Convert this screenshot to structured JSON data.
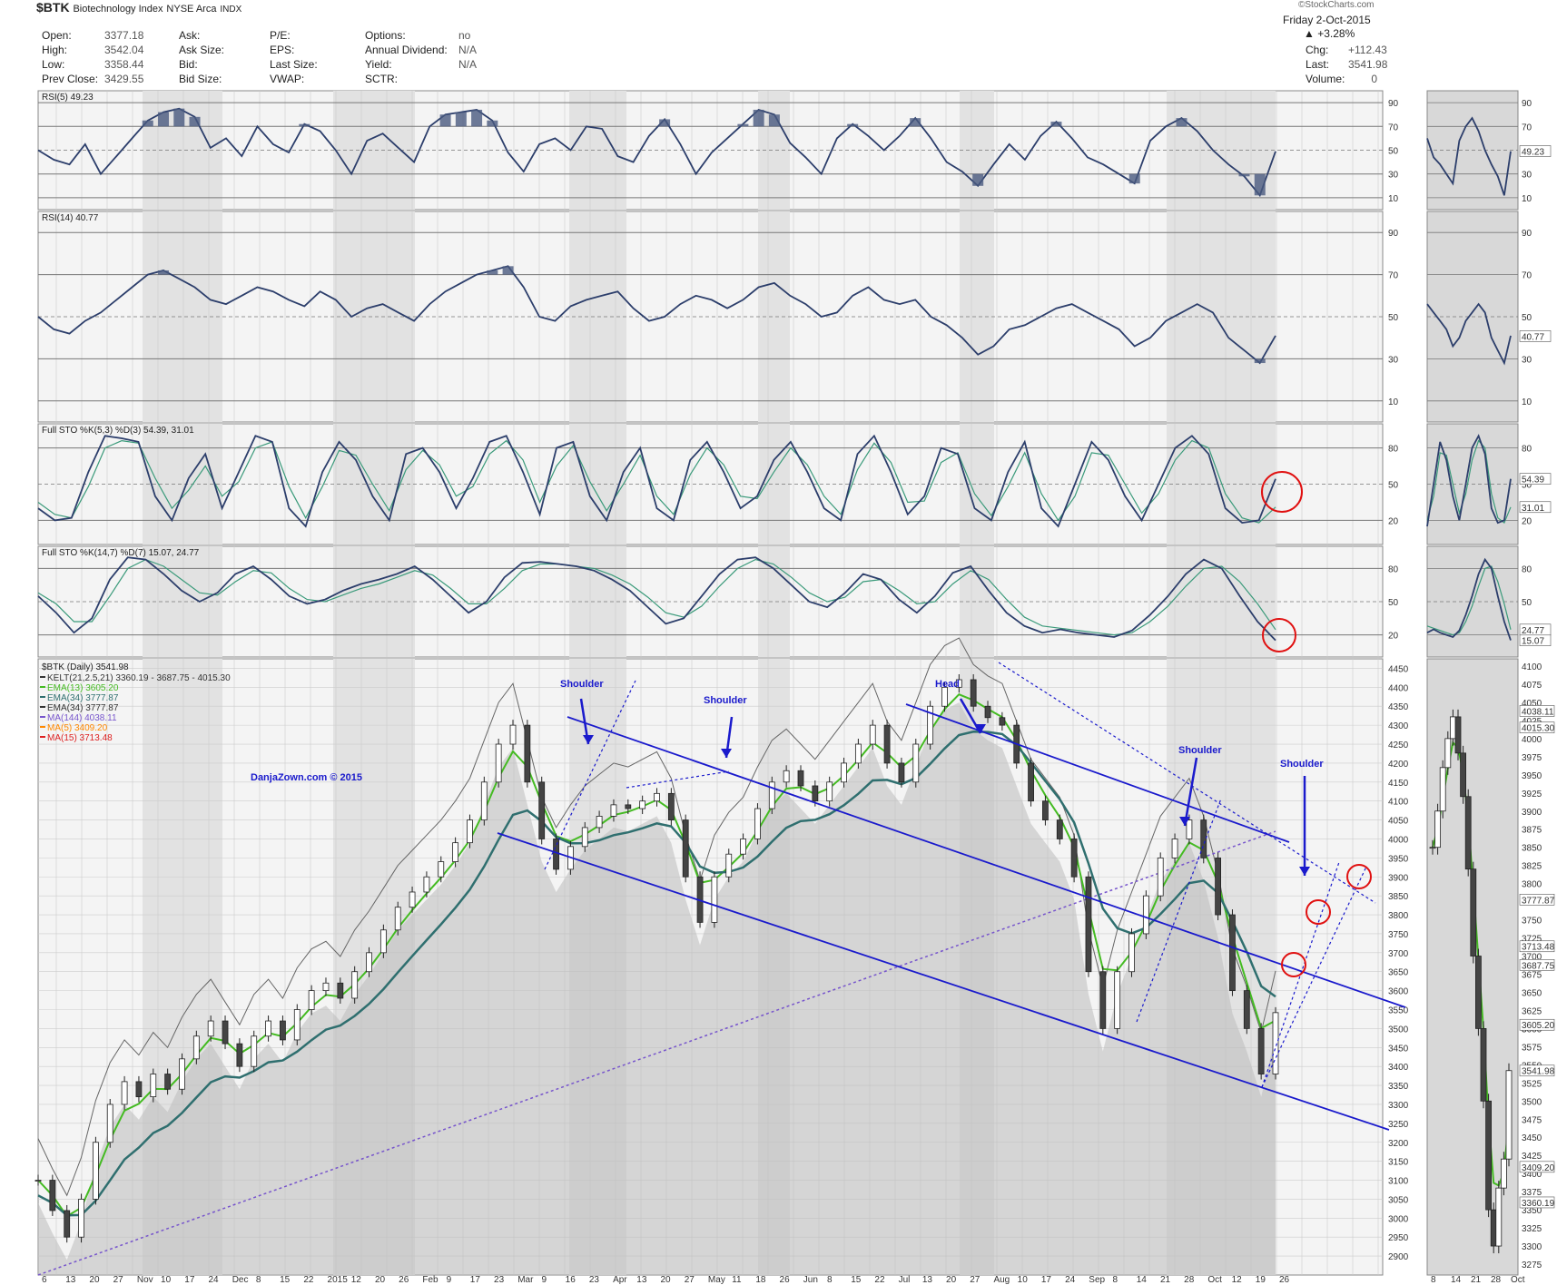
{
  "header": {
    "symbol": "$BTK",
    "name": "Biotechnology Index",
    "exchange": "NYSE Arca",
    "type": "INDX",
    "watermark": "©StockCharts.com",
    "date": "Friday 2-Oct-2015",
    "change_pct": "+3.28%",
    "fields": [
      {
        "k": "Open:",
        "v": "3377.18"
      },
      {
        "k": "High:",
        "v": "3542.04"
      },
      {
        "k": "Low:",
        "v": "3358.44"
      },
      {
        "k": "Prev Close:",
        "v": "3429.55"
      },
      {
        "k": "Ask:",
        "v": ""
      },
      {
        "k": "Ask Size:",
        "v": ""
      },
      {
        "k": "Bid:",
        "v": ""
      },
      {
        "k": "Bid Size:",
        "v": ""
      },
      {
        "k": "P/E:",
        "v": ""
      },
      {
        "k": "EPS:",
        "v": ""
      },
      {
        "k": "Last Size:",
        "v": ""
      },
      {
        "k": "VWAP:",
        "v": ""
      },
      {
        "k": "Options:",
        "v": "no"
      },
      {
        "k": "Annual Dividend:",
        "v": "N/A"
      },
      {
        "k": "Yield:",
        "v": "N/A"
      },
      {
        "k": "SCTR:",
        "v": ""
      }
    ],
    "right_fields": [
      {
        "k": "Chg:",
        "v": "+112.43"
      },
      {
        "k": "Last:",
        "v": "3541.98"
      },
      {
        "k": "Volume:",
        "v": "0"
      }
    ]
  },
  "colors": {
    "price_line": "#2c3e6b",
    "signal": "#3a9a7a",
    "trend": "#1a1acc",
    "circle": "#e01010",
    "ema13": "#44bb22",
    "ema34": "#2f6f6f",
    "ma144": "#7755cc",
    "ma5": "#ff8800",
    "ma15": "#dd2222"
  },
  "chart_data": [
    {
      "type": "line",
      "title": "RSI(5) 49.23",
      "levels": [
        90,
        70,
        50,
        30,
        10
      ],
      "last_value": "49.23",
      "series": [
        {
          "name": "RSI(5)",
          "values": [
            50,
            42,
            38,
            55,
            30,
            45,
            60,
            75,
            82,
            85,
            78,
            52,
            60,
            45,
            70,
            55,
            48,
            72,
            66,
            50,
            30,
            58,
            64,
            52,
            40,
            70,
            80,
            82,
            84,
            75,
            48,
            32,
            55,
            60,
            50,
            70,
            68,
            45,
            40,
            62,
            76,
            55,
            30,
            48,
            60,
            72,
            84,
            80,
            56,
            44,
            30,
            60,
            72,
            62,
            50,
            62,
            77,
            60,
            40,
            32,
            20,
            38,
            55,
            42,
            62,
            74,
            60,
            44,
            38,
            30,
            22,
            58,
            70,
            77,
            66,
            50,
            38,
            28,
            12,
            49
          ]
        }
      ]
    },
    {
      "type": "line",
      "title": "RSI(14) 40.77",
      "levels": [
        90,
        70,
        50,
        30,
        10
      ],
      "last_value": "40.77",
      "series": [
        {
          "name": "RSI(14)",
          "values": [
            50,
            44,
            42,
            48,
            52,
            58,
            64,
            70,
            72,
            68,
            64,
            58,
            56,
            60,
            64,
            62,
            58,
            55,
            62,
            58,
            50,
            54,
            56,
            52,
            48,
            56,
            62,
            66,
            70,
            72,
            74,
            64,
            50,
            48,
            55,
            58,
            60,
            62,
            54,
            48,
            50,
            56,
            60,
            58,
            54,
            58,
            64,
            66,
            60,
            56,
            50,
            52,
            60,
            64,
            58,
            56,
            58,
            50,
            46,
            40,
            32,
            36,
            44,
            46,
            50,
            54,
            56,
            52,
            48,
            44,
            36,
            40,
            48,
            52,
            56,
            52,
            40,
            34,
            28,
            41
          ]
        }
      ]
    },
    {
      "type": "line",
      "title": "Full STO %K(5,3) %D(3) 54.39, 31.01",
      "levels": [
        80,
        50,
        20
      ],
      "last_values": [
        "54.39",
        "31.01"
      ],
      "series": [
        {
          "name": "%K(5,3)",
          "values": [
            30,
            20,
            22,
            60,
            90,
            88,
            85,
            40,
            20,
            55,
            75,
            30,
            60,
            90,
            85,
            30,
            15,
            60,
            85,
            70,
            40,
            20,
            75,
            80,
            60,
            30,
            55,
            85,
            90,
            60,
            25,
            80,
            85,
            40,
            20,
            60,
            80,
            30,
            20,
            70,
            85,
            60,
            30,
            40,
            70,
            85,
            60,
            30,
            20,
            75,
            90,
            60,
            25,
            40,
            80,
            75,
            30,
            20,
            60,
            85,
            30,
            15,
            50,
            85,
            70,
            40,
            20,
            50,
            80,
            90,
            75,
            30,
            18,
            20,
            54.39
          ]
        },
        {
          "name": "%D(3)",
          "values": [
            35,
            25,
            22,
            48,
            80,
            86,
            84,
            55,
            30,
            45,
            65,
            40,
            52,
            80,
            85,
            48,
            22,
            48,
            78,
            74,
            50,
            28,
            62,
            78,
            66,
            40,
            48,
            75,
            86,
            70,
            35,
            65,
            82,
            52,
            28,
            50,
            74,
            40,
            25,
            58,
            80,
            66,
            40,
            38,
            60,
            80,
            66,
            40,
            25,
            62,
            84,
            68,
            35,
            36,
            68,
            76,
            42,
            24,
            48,
            76,
            42,
            20,
            40,
            76,
            74,
            50,
            26,
            42,
            70,
            86,
            80,
            42,
            22,
            18,
            31.01
          ]
        }
      ]
    },
    {
      "type": "line",
      "title": "Full STO %K(14,7) %D(7) 15.07, 24.77",
      "levels": [
        80,
        50,
        20
      ],
      "last_values": [
        "15.07",
        "24.77"
      ],
      "series": [
        {
          "name": "%K(14,7)",
          "values": [
            55,
            40,
            22,
            35,
            70,
            90,
            88,
            75,
            60,
            50,
            58,
            75,
            82,
            70,
            55,
            48,
            52,
            60,
            66,
            70,
            75,
            82,
            70,
            55,
            40,
            50,
            72,
            85,
            86,
            84,
            82,
            78,
            70,
            60,
            45,
            30,
            35,
            55,
            75,
            88,
            90,
            80,
            65,
            50,
            45,
            58,
            75,
            70,
            52,
            40,
            55,
            76,
            82,
            60,
            40,
            28,
            22,
            25,
            22,
            20,
            18,
            24,
            38,
            55,
            75,
            88,
            80,
            55,
            32,
            15.07
          ]
        },
        {
          "name": "%D(7)",
          "values": [
            58,
            48,
            32,
            32,
            55,
            80,
            88,
            82,
            70,
            58,
            56,
            68,
            78,
            76,
            62,
            52,
            50,
            56,
            62,
            66,
            72,
            78,
            74,
            62,
            48,
            48,
            62,
            78,
            84,
            84,
            82,
            80,
            74,
            66,
            54,
            40,
            36,
            46,
            64,
            80,
            88,
            84,
            72,
            58,
            50,
            54,
            68,
            70,
            60,
            48,
            50,
            66,
            78,
            70,
            52,
            36,
            28,
            26,
            24,
            22,
            20,
            22,
            32,
            46,
            64,
            80,
            82,
            68,
            48,
            24.77
          ]
        }
      ]
    },
    {
      "type": "line",
      "title": "$BTK (Daily) 3541.98",
      "legend": [
        "KELT(21,2.5,21) 3360.19 - 3687.75 - 4015.30",
        "EMA(13) 3605.20",
        "EMA(34) 3777.87",
        "EMA(34) 3777.87",
        "MA(144) 4038.11",
        "MA(5) 3409.20",
        "MA(15) 3713.48"
      ],
      "ylim": [
        2850,
        4475
      ],
      "yticks": [
        2900,
        2950,
        3000,
        3050,
        3100,
        3150,
        3200,
        3250,
        3300,
        3350,
        3400,
        3450,
        3500,
        3550,
        3600,
        3650,
        3700,
        3750,
        3800,
        3850,
        3900,
        3950,
        4000,
        4050,
        4100,
        4150,
        4200,
        4250,
        4300,
        4350,
        4400,
        4450
      ],
      "xlabels": [
        "6",
        "13",
        "20",
        "27",
        "Nov",
        "10",
        "17",
        "24",
        "Dec",
        "8",
        "15",
        "22",
        "2015",
        "12",
        "20",
        "26",
        "Feb",
        "9",
        "17",
        "23",
        "Mar",
        "9",
        "16",
        "23",
        "Apr",
        "13",
        "20",
        "27",
        "May",
        "11",
        "18",
        "26",
        "Jun",
        "8",
        "15",
        "22",
        "Jul",
        "13",
        "20",
        "27",
        "Aug",
        "10",
        "17",
        "24",
        "Sep",
        "8",
        "14",
        "21",
        "28",
        "Oct",
        "12",
        "19",
        "26"
      ],
      "series": [
        {
          "name": "$BTK",
          "values": [
            3100,
            3020,
            2950,
            3050,
            3200,
            3300,
            3360,
            3320,
            3380,
            3340,
            3420,
            3480,
            3520,
            3460,
            3400,
            3480,
            3520,
            3470,
            3550,
            3600,
            3620,
            3580,
            3650,
            3700,
            3760,
            3820,
            3860,
            3900,
            3940,
            3990,
            4050,
            4150,
            4250,
            4300,
            4150,
            4000,
            3920,
            3980,
            4030,
            4060,
            4090,
            4080,
            4100,
            4120,
            4050,
            3900,
            3780,
            3900,
            3960,
            4000,
            4080,
            4150,
            4180,
            4140,
            4100,
            4150,
            4200,
            4250,
            4300,
            4200,
            4150,
            4250,
            4350,
            4400,
            4420,
            4350,
            4320,
            4300,
            4200,
            4100,
            4050,
            4000,
            3900,
            3650,
            3500,
            3650,
            3750,
            3850,
            3950,
            4000,
            4050,
            3950,
            3800,
            3600,
            3500,
            3380,
            3541.98
          ]
        }
      ],
      "annotations": [
        "Shoulder",
        "Shoulder",
        "Head",
        "Shoulder",
        "Shoulder"
      ],
      "watermark": "DanjaZown.com © 2015",
      "price_labels": [
        "4038.11",
        "4015.30",
        "3777.87",
        "3713.48",
        "3687.75",
        "3605.20",
        "3541.98",
        "3409.20",
        "3360.19"
      ]
    },
    {
      "type": "line",
      "title": "$BTK (Daily) zoom",
      "ylim": [
        3260,
        4110
      ],
      "yticks": [
        3275,
        3300,
        3325,
        3350,
        3375,
        3400,
        3425,
        3450,
        3475,
        3500,
        3525,
        3550,
        3575,
        3600,
        3625,
        3650,
        3675,
        3700,
        3725,
        3750,
        3775,
        3800,
        3825,
        3850,
        3875,
        3900,
        3925,
        3950,
        3975,
        4000,
        4025,
        4050,
        4075,
        4100
      ],
      "xlabels": [
        "8",
        "14",
        "21",
        "28",
        "Oct"
      ],
      "series": [
        {
          "name": "$BTK",
          "values": [
            3850,
            3900,
            3960,
            4000,
            4030,
            3980,
            3920,
            3820,
            3700,
            3600,
            3500,
            3350,
            3300,
            3380,
            3420,
            3541.98
          ]
        }
      ]
    }
  ]
}
